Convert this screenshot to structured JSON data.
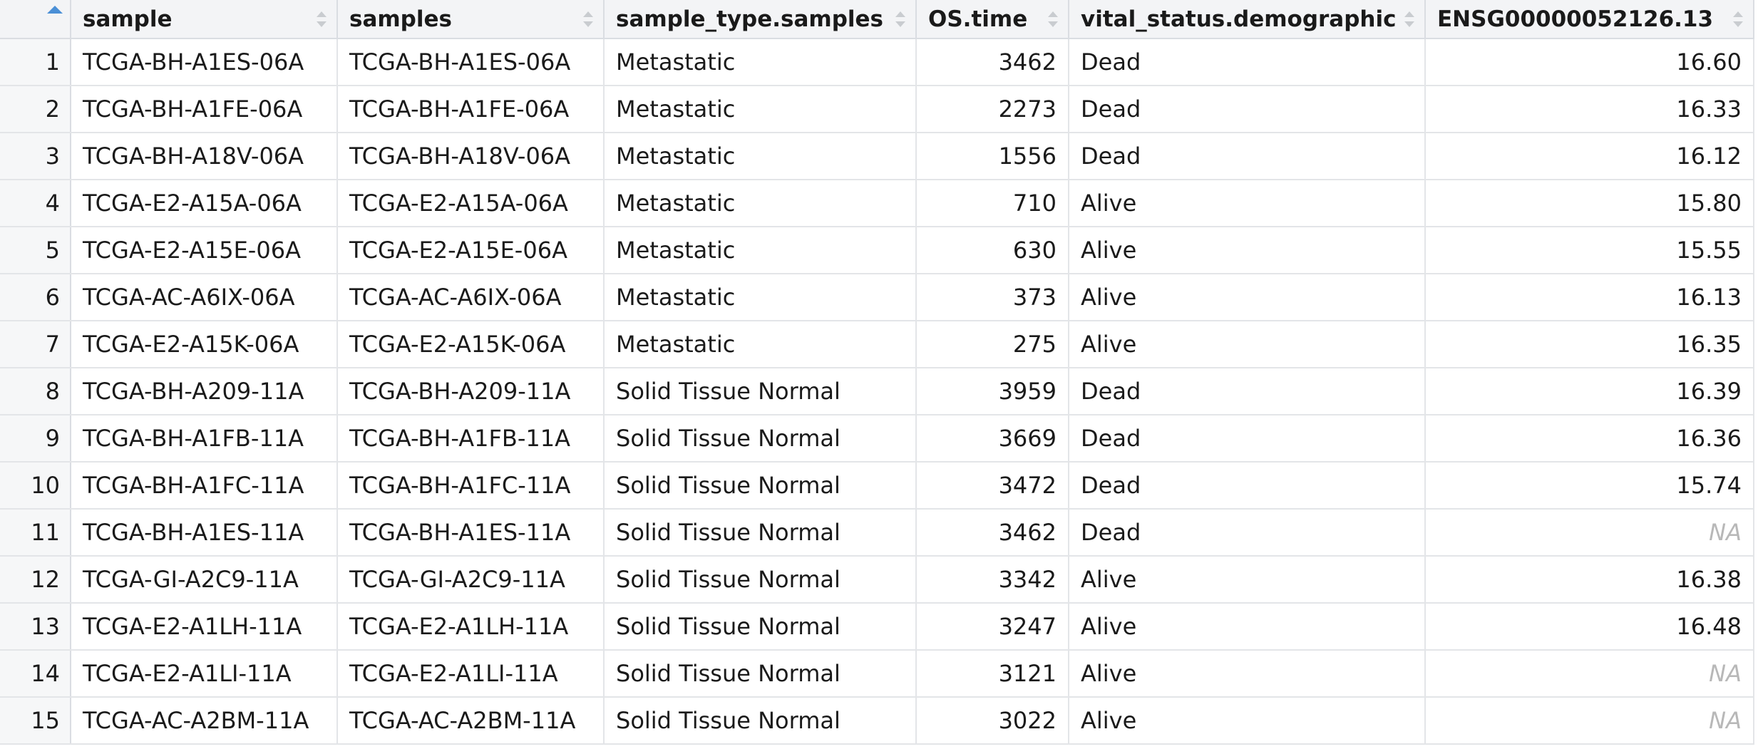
{
  "grid": {
    "sort_indicator_color": "#4a8fd6",
    "columns": [
      {
        "key": "sample",
        "label": "sample",
        "align": "left"
      },
      {
        "key": "samples",
        "label": "samples",
        "align": "left"
      },
      {
        "key": "sample_type",
        "label": "sample_type.samples",
        "align": "left"
      },
      {
        "key": "os_time",
        "label": "OS.time",
        "align": "right"
      },
      {
        "key": "vital",
        "label": "vital_status.demographic",
        "align": "left"
      },
      {
        "key": "ensg",
        "label": "ENSG00000052126.13",
        "align": "right"
      }
    ],
    "rows": [
      {
        "idx": "1",
        "sample": "TCGA-BH-A1ES-06A",
        "samples": "TCGA-BH-A1ES-06A",
        "sample_type": "Metastatic",
        "os_time": "3462",
        "vital": "Dead",
        "ensg": "16.60"
      },
      {
        "idx": "2",
        "sample": "TCGA-BH-A1FE-06A",
        "samples": "TCGA-BH-A1FE-06A",
        "sample_type": "Metastatic",
        "os_time": "2273",
        "vital": "Dead",
        "ensg": "16.33"
      },
      {
        "idx": "3",
        "sample": "TCGA-BH-A18V-06A",
        "samples": "TCGA-BH-A18V-06A",
        "sample_type": "Metastatic",
        "os_time": "1556",
        "vital": "Dead",
        "ensg": "16.12"
      },
      {
        "idx": "4",
        "sample": "TCGA-E2-A15A-06A",
        "samples": "TCGA-E2-A15A-06A",
        "sample_type": "Metastatic",
        "os_time": "710",
        "vital": "Alive",
        "ensg": "15.80"
      },
      {
        "idx": "5",
        "sample": "TCGA-E2-A15E-06A",
        "samples": "TCGA-E2-A15E-06A",
        "sample_type": "Metastatic",
        "os_time": "630",
        "vital": "Alive",
        "ensg": "15.55"
      },
      {
        "idx": "6",
        "sample": "TCGA-AC-A6IX-06A",
        "samples": "TCGA-AC-A6IX-06A",
        "sample_type": "Metastatic",
        "os_time": "373",
        "vital": "Alive",
        "ensg": "16.13"
      },
      {
        "idx": "7",
        "sample": "TCGA-E2-A15K-06A",
        "samples": "TCGA-E2-A15K-06A",
        "sample_type": "Metastatic",
        "os_time": "275",
        "vital": "Alive",
        "ensg": "16.35"
      },
      {
        "idx": "8",
        "sample": "TCGA-BH-A209-11A",
        "samples": "TCGA-BH-A209-11A",
        "sample_type": "Solid Tissue Normal",
        "os_time": "3959",
        "vital": "Dead",
        "ensg": "16.39"
      },
      {
        "idx": "9",
        "sample": "TCGA-BH-A1FB-11A",
        "samples": "TCGA-BH-A1FB-11A",
        "sample_type": "Solid Tissue Normal",
        "os_time": "3669",
        "vital": "Dead",
        "ensg": "16.36"
      },
      {
        "idx": "10",
        "sample": "TCGA-BH-A1FC-11A",
        "samples": "TCGA-BH-A1FC-11A",
        "sample_type": "Solid Tissue Normal",
        "os_time": "3472",
        "vital": "Dead",
        "ensg": "15.74"
      },
      {
        "idx": "11",
        "sample": "TCGA-BH-A1ES-11A",
        "samples": "TCGA-BH-A1ES-11A",
        "sample_type": "Solid Tissue Normal",
        "os_time": "3462",
        "vital": "Dead",
        "ensg": "NA"
      },
      {
        "idx": "12",
        "sample": "TCGA-GI-A2C9-11A",
        "samples": "TCGA-GI-A2C9-11A",
        "sample_type": "Solid Tissue Normal",
        "os_time": "3342",
        "vital": "Alive",
        "ensg": "16.38"
      },
      {
        "idx": "13",
        "sample": "TCGA-E2-A1LH-11A",
        "samples": "TCGA-E2-A1LH-11A",
        "sample_type": "Solid Tissue Normal",
        "os_time": "3247",
        "vital": "Alive",
        "ensg": "16.48"
      },
      {
        "idx": "14",
        "sample": "TCGA-E2-A1LI-11A",
        "samples": "TCGA-E2-A1LI-11A",
        "sample_type": "Solid Tissue Normal",
        "os_time": "3121",
        "vital": "Alive",
        "ensg": "NA"
      },
      {
        "idx": "15",
        "sample": "TCGA-AC-A2BM-11A",
        "samples": "TCGA-AC-A2BM-11A",
        "sample_type": "Solid Tissue Normal",
        "os_time": "3022",
        "vital": "Alive",
        "ensg": "NA"
      }
    ]
  }
}
